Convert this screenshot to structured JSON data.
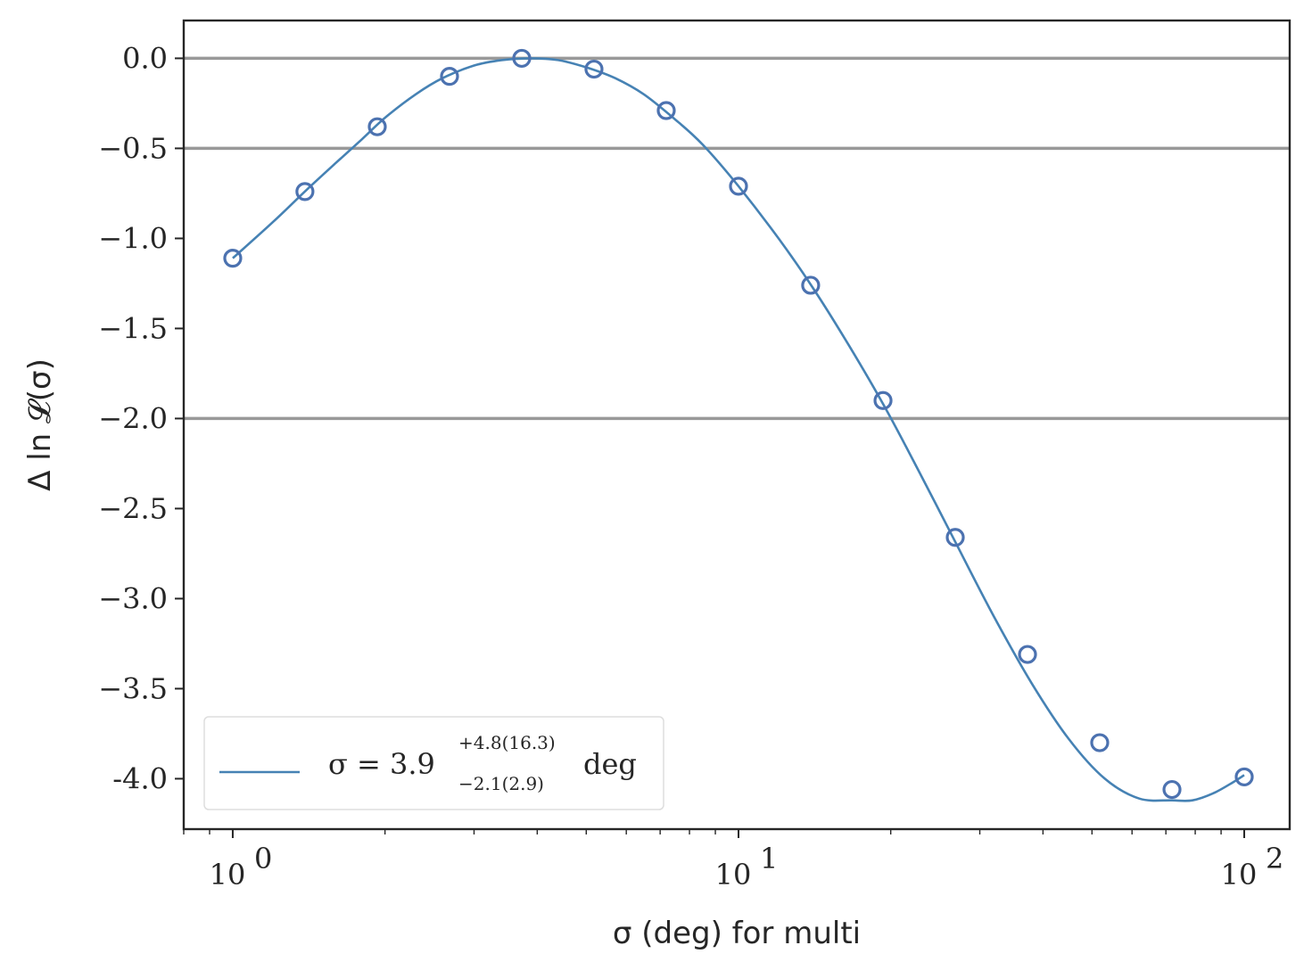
{
  "chart_data": {
    "type": "line",
    "xlabel": "σ (deg) for multi",
    "ylabel": "Δ ln 𝓛(σ)",
    "xscale": "log",
    "xlim": [
      0.8,
      123
    ],
    "ylim": [
      -4.28,
      0.21
    ],
    "x_ticks": [
      {
        "value": 1,
        "base": "10",
        "exp": "0"
      },
      {
        "value": 10,
        "base": "10",
        "exp": "1"
      },
      {
        "value": 100,
        "base": "10",
        "exp": "2"
      }
    ],
    "y_ticks": [
      {
        "value": 0.0,
        "label": "0.0"
      },
      {
        "value": -0.5,
        "label": "−0.5"
      },
      {
        "value": -1.0,
        "label": "−1.0"
      },
      {
        "value": -1.5,
        "label": "−1.5"
      },
      {
        "value": -2.0,
        "label": "−2.0"
      },
      {
        "value": -2.5,
        "label": "−2.5"
      },
      {
        "value": -3.0,
        "label": "−3.0"
      },
      {
        "value": -3.5,
        "label": "−3.5"
      },
      {
        "value": -4.0,
        "label": "-4.0"
      }
    ],
    "reference_lines": [
      0.0,
      -0.5,
      -2.0
    ],
    "series": [
      {
        "kind": "markers",
        "marker": "open-circle",
        "x": [
          1.0,
          1.389,
          1.931,
          2.683,
          3.728,
          5.179,
          7.197,
          10.0,
          13.89,
          19.31,
          26.83,
          37.28,
          51.79,
          71.97,
          100.0
        ],
        "y": [
          -1.11,
          -0.74,
          -0.38,
          -0.1,
          0.0,
          -0.06,
          -0.29,
          -0.71,
          -1.26,
          -1.9,
          -2.66,
          -3.31,
          -3.8,
          -4.06,
          -3.99
        ]
      },
      {
        "kind": "fit-curve",
        "legend": {
          "main": "σ = 3.9",
          "sup": "+4.8(16.3)",
          "sub": "−2.1(2.9)",
          "unit": "deg"
        },
        "fit_peak_x": 3.9,
        "x": [
          1.0,
          1.2,
          1.4,
          1.6,
          1.8,
          2.0,
          2.3,
          2.6,
          3.0,
          3.4,
          3.9,
          4.4,
          5.0,
          5.7,
          6.5,
          7.5,
          8.5,
          10.0,
          12.0,
          14.0,
          16.5,
          19.5,
          23.0,
          27.0,
          32.0,
          38.0,
          45.0,
          53.0,
          62.0,
          72.0,
          79.0,
          87.0,
          95.0,
          100.0
        ],
        "y": [
          -1.11,
          -0.91,
          -0.73,
          -0.58,
          -0.45,
          -0.33,
          -0.2,
          -0.11,
          -0.04,
          -0.01,
          0.0,
          -0.01,
          -0.05,
          -0.11,
          -0.2,
          -0.34,
          -0.48,
          -0.71,
          -1.0,
          -1.27,
          -1.59,
          -1.94,
          -2.32,
          -2.7,
          -3.1,
          -3.47,
          -3.78,
          -4.0,
          -4.11,
          -4.12,
          -4.12,
          -4.08,
          -4.02,
          -3.98
        ]
      }
    ],
    "colors": {
      "series": "#4c72b0",
      "fit": "#4682b4",
      "reference": "#999999",
      "axes": "#262626"
    },
    "legend_placement": "lower-left"
  }
}
